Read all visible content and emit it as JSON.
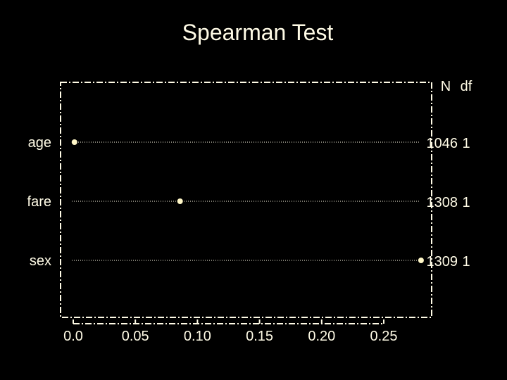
{
  "colors": {
    "background": "#000000",
    "foreground": "#fffbe6",
    "dots": "#fff7c7"
  },
  "chart_data": {
    "type": "scatter",
    "title": "Spearman Test",
    "xlabel": "",
    "ylabel": "",
    "xlim": [
      -0.008,
      0.29
    ],
    "x_ticks": [
      0.0,
      0.05,
      0.1,
      0.15,
      0.2,
      0.25
    ],
    "x_tick_labels": [
      "0.0",
      "0.05",
      "0.10",
      "0.15",
      "0.20",
      "0.25"
    ],
    "categories": [
      "age",
      "fare",
      "sex"
    ],
    "values": [
      0.001,
      0.086,
      0.28
    ],
    "right_columns": {
      "headers": [
        "N",
        "df"
      ],
      "N": [
        "1046",
        "1308",
        "1309"
      ],
      "df": [
        "1",
        "1",
        "1"
      ]
    },
    "grid": false,
    "legend": "none"
  }
}
